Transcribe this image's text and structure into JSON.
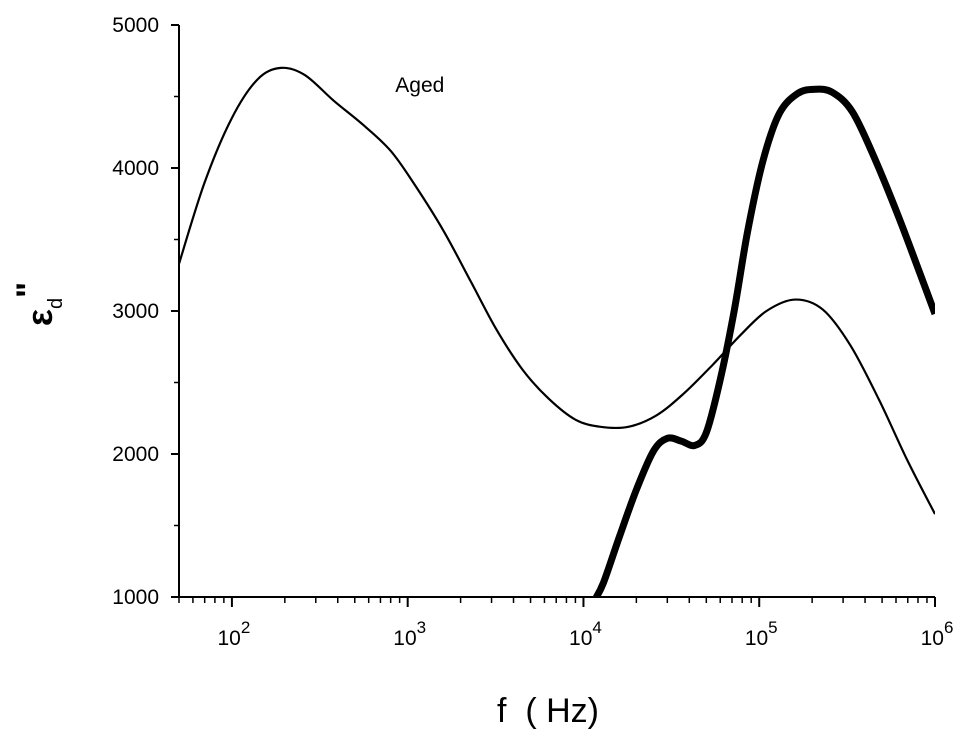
{
  "chart_data": {
    "type": "line",
    "title": "",
    "xlabel": "f  ( Hz)",
    "ylabel_symbol": "ε",
    "ylabel_superscript": "\"",
    "ylabel_subscript": "d",
    "x_scale": "log",
    "xlim": [
      50,
      1000000
    ],
    "ylim": [
      1000,
      5000
    ],
    "y_ticks": [
      1000,
      2000,
      3000,
      4000,
      5000
    ],
    "y_tick_labels": [
      "1000",
      "2000",
      "3000",
      "4000",
      "5000"
    ],
    "x_ticks": [
      100,
      1000,
      10000,
      100000,
      1000000
    ],
    "x_tick_base": "10",
    "x_tick_exponents": [
      "2",
      "3",
      "4",
      "5",
      "6"
    ],
    "grid": false,
    "annotations": [
      {
        "text": "Aged",
        "x": 850,
        "y": 4530
      }
    ],
    "series": [
      {
        "name": "Aged",
        "line_weight": "thin",
        "color": "#000000",
        "points": [
          [
            50,
            3330
          ],
          [
            70,
            3900
          ],
          [
            100,
            4350
          ],
          [
            140,
            4620
          ],
          [
            190,
            4700
          ],
          [
            260,
            4650
          ],
          [
            380,
            4470
          ],
          [
            560,
            4300
          ],
          [
            800,
            4120
          ],
          [
            1100,
            3880
          ],
          [
            1600,
            3560
          ],
          [
            2300,
            3200
          ],
          [
            3200,
            2870
          ],
          [
            4500,
            2590
          ],
          [
            6300,
            2390
          ],
          [
            9000,
            2240
          ],
          [
            12500,
            2190
          ],
          [
            18000,
            2190
          ],
          [
            26000,
            2270
          ],
          [
            37000,
            2420
          ],
          [
            54000,
            2620
          ],
          [
            78000,
            2830
          ],
          [
            110000,
            3000
          ],
          [
            160000,
            3080
          ],
          [
            230000,
            3010
          ],
          [
            330000,
            2760
          ],
          [
            480000,
            2380
          ],
          [
            700000,
            1950
          ],
          [
            1000000,
            1580
          ]
        ]
      },
      {
        "line_weight": "thick",
        "color": "#000000",
        "points": [
          [
            11600,
            980
          ],
          [
            13000,
            1100
          ],
          [
            16000,
            1420
          ],
          [
            20000,
            1750
          ],
          [
            25000,
            2020
          ],
          [
            30000,
            2110
          ],
          [
            36000,
            2090
          ],
          [
            43000,
            2060
          ],
          [
            50000,
            2150
          ],
          [
            60000,
            2520
          ],
          [
            72000,
            3000
          ],
          [
            86000,
            3560
          ],
          [
            105000,
            4050
          ],
          [
            130000,
            4380
          ],
          [
            165000,
            4520
          ],
          [
            205000,
            4550
          ],
          [
            260000,
            4530
          ],
          [
            340000,
            4390
          ],
          [
            460000,
            4050
          ],
          [
            620000,
            3660
          ],
          [
            800000,
            3300
          ],
          [
            1000000,
            2980
          ]
        ]
      }
    ]
  }
}
